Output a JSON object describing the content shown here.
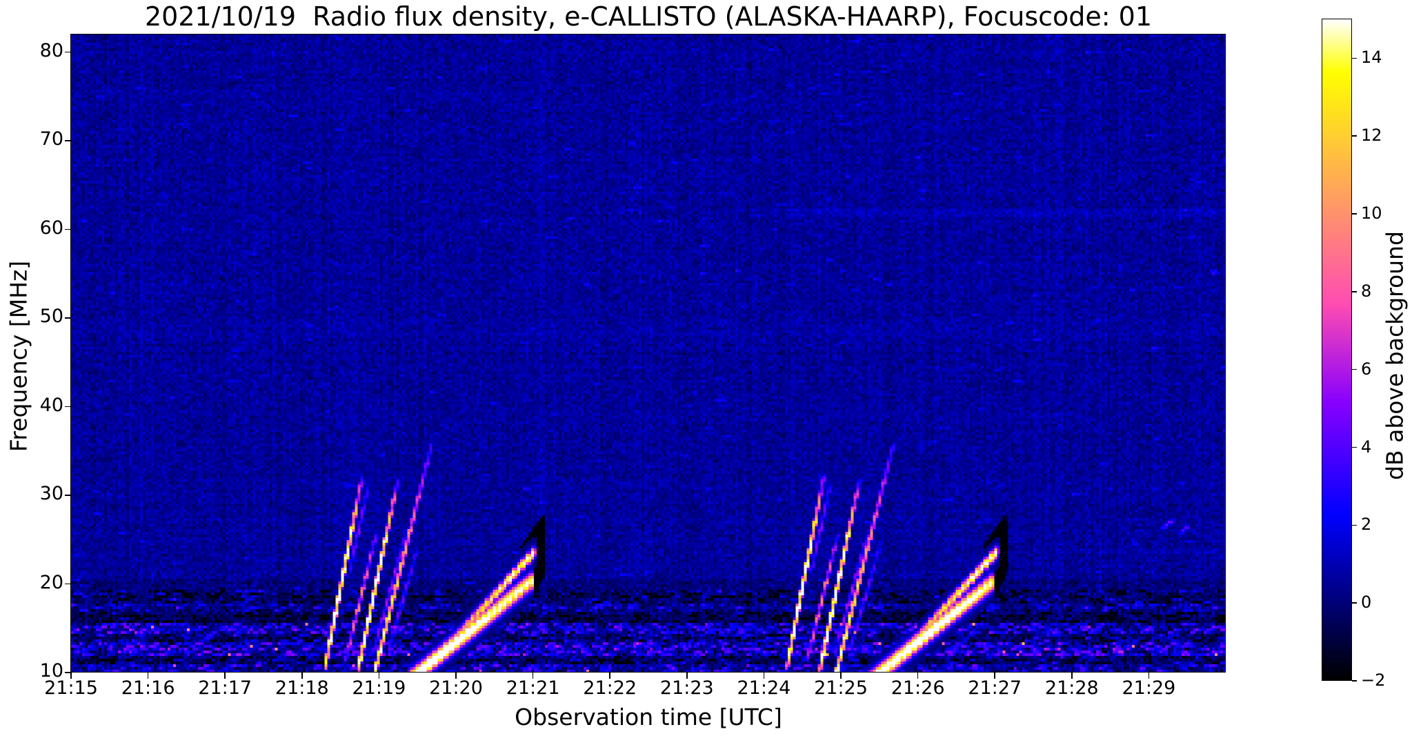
{
  "figure": {
    "background_color": "#ffffff"
  },
  "chart_data": {
    "type": "heatmap",
    "title": "2021/10/19  Radio flux density, e-CALLISTO (ALASKA-HAARP), Focuscode: 01",
    "xlabel": "Observation time [UTC]",
    "ylabel": "Frequency [MHz]",
    "x_ticks": [
      "21:15",
      "21:16",
      "21:17",
      "21:18",
      "21:19",
      "21:20",
      "21:21",
      "21:22",
      "21:23",
      "21:24",
      "21:25",
      "21:26",
      "21:27",
      "21:28",
      "21:29"
    ],
    "x_range_minutes": [
      0,
      15
    ],
    "x_start_label": "21:15",
    "y_ticks": [
      10,
      20,
      30,
      40,
      50,
      60,
      70,
      80
    ],
    "y_range_mhz": [
      10,
      82
    ],
    "grid": false,
    "colorbar": {
      "label": "dB above background",
      "colormap": "gnuplot2",
      "vmin": -2,
      "vmax": 15,
      "tick_values": [
        14,
        12,
        10,
        8,
        6,
        4,
        2,
        0,
        -2
      ],
      "tick_labels": [
        "14",
        "12",
        "10",
        "8",
        "6",
        "4",
        "2",
        "0",
        "−2"
      ]
    },
    "palette_reference": {
      "background_navy": "#10108c",
      "burst_core_white": "#ffffff",
      "burst_yellow": "#ffec13",
      "burst_pink": "#de38c8",
      "deep_black": "#000000"
    },
    "noise": {
      "seed": 42,
      "col_striation_sigma": 0.17,
      "regions": [
        {
          "f": [
            19.3,
            20.5
          ],
          "mean": 0.15,
          "sigma": 0.55,
          "speck": 0.01,
          "samp": 1.2
        },
        {
          "f": [
            17.8,
            19.3
          ],
          "mean": -0.15,
          "sigma": 0.75,
          "speck": 0.04,
          "samp": 1.7,
          "dark": 0.1,
          "damp": -1.4
        },
        {
          "f": [
            16.8,
            17.8
          ],
          "mean": 0.1,
          "sigma": 0.85,
          "speck": 0.1,
          "samp": 2.0
        },
        {
          "f": [
            15.6,
            16.8
          ],
          "mean": -0.45,
          "sigma": 0.75,
          "speck": 0.02,
          "samp": 1.5,
          "dark": 0.12,
          "damp": -1.5
        },
        {
          "f": [
            14.4,
            15.6
          ],
          "mean": 0.3,
          "sigma": 1.0,
          "speck": 0.22,
          "samp": 2.8,
          "mag": 0.006,
          "mamp": 6.5
        },
        {
          "f": [
            13.3,
            14.4
          ],
          "mean": -0.1,
          "sigma": 0.9,
          "speck": 0.1,
          "samp": 2.0,
          "dark": 0.08,
          "damp": -1.3
        },
        {
          "f": [
            12.0,
            13.3
          ],
          "mean": 0.45,
          "sigma": 1.1,
          "speck": 0.25,
          "samp": 3.0,
          "mag": 0.008,
          "mamp": 6.5
        },
        {
          "f": [
            11.0,
            12.0
          ],
          "mean": -0.2,
          "sigma": 0.85,
          "speck": 0.06,
          "samp": 1.8,
          "dark": 0.1,
          "damp": -1.3
        },
        {
          "f": [
            10.0,
            11.0
          ],
          "mean": 0.35,
          "sigma": 1.0,
          "speck": 0.15,
          "samp": 2.5,
          "mag": 0.004,
          "mamp": 6.0
        },
        {
          "f": [
            20.5,
            82.5
          ],
          "mean": 0.55,
          "sigma": 0.5,
          "speck": 0.004,
          "samp": 1.1
        }
      ],
      "patches": [
        {
          "f": [
            61.5,
            62.4
          ],
          "t": [
            8.8,
            15.0
          ],
          "add": 0.45
        },
        {
          "f": [
            23.3,
            23.9
          ],
          "t": [
            12.7,
            15.0
          ],
          "add": 0.32
        },
        {
          "f": [
            47.0,
            50.0
          ],
          "t": [
            0.0,
            15.0
          ],
          "add": 0.12
        },
        {
          "f": [
            75.2,
            75.9
          ],
          "t": [
            0.0,
            6.0
          ],
          "add": 0.18
        }
      ]
    },
    "burst_group_offsets_min": [
      0.0,
      6.0
    ],
    "thin_streaks": [
      {
        "p": [
          3.3,
          10.6,
          3.78,
          32.0
        ],
        "w": 0.55,
        "peak": [
          10.0,
          14.5,
          3.5
        ],
        "dash": 0.35
      },
      {
        "p": [
          3.57,
          11.5,
          3.96,
          25.5
        ],
        "w": 0.4,
        "peak": [
          4.0,
          7.0,
          3.0
        ],
        "dash": 0.45
      },
      {
        "p": [
          3.62,
          21.5,
          3.86,
          31.0
        ],
        "w": 0.35,
        "peak": [
          2.5,
          4.0,
          2.0
        ],
        "dash": 0.4
      },
      {
        "p": [
          3.73,
          10.3,
          4.24,
          31.5
        ],
        "w": 0.52,
        "peak": [
          11.0,
          14.5,
          3.5
        ],
        "dash": 0.35
      },
      {
        "p": [
          3.92,
          12.0,
          4.36,
          26.0
        ],
        "w": 0.38,
        "peak": [
          2.5,
          4.5,
          2.0
        ],
        "dash": 0.45
      },
      {
        "p": [
          3.95,
          10.2,
          4.68,
          35.6
        ],
        "w": 0.5,
        "peak": [
          13.0,
          9.0,
          2.8
        ],
        "dash": 0.3
      },
      {
        "p": [
          4.12,
          12.5,
          4.5,
          24.0
        ],
        "w": 0.35,
        "peak": [
          2.2,
          3.5,
          2.0
        ],
        "dash": 0.5
      }
    ],
    "broad_bands": [
      {
        "p": [
          4.4,
          9.2,
          5.98,
          20.3
        ],
        "w": 1.25,
        "peak": [
          15.5,
          15.0,
          13.0
        ],
        "dash": 0.25,
        "dp": 0.07
      },
      {
        "p": [
          4.85,
          12.6,
          6.03,
          23.7
        ],
        "w": 0.85,
        "peak": [
          5.0,
          9.5,
          11.0
        ],
        "dash": 0.8,
        "dp": 0.06
      }
    ],
    "shadow_bands": [
      {
        "p": [
          5.0,
          13.9,
          6.06,
          21.2
        ],
        "w": 1.8,
        "level": -1.6
      },
      {
        "p": [
          5.86,
          20.8,
          6.14,
          24.3
        ],
        "w": 2.6,
        "level": -1.9
      },
      {
        "p": [
          4.55,
          10.5,
          5.5,
          16.2
        ],
        "w": 1.2,
        "level": -0.9
      }
    ],
    "extra_streaks": [
      {
        "p": [
          14.18,
          26.3,
          14.32,
          27.2
        ],
        "w": 0.4,
        "peak": [
          2.4,
          3.2,
          2.4
        ],
        "dash": 0.6
      },
      {
        "p": [
          14.42,
          25.8,
          14.52,
          26.6
        ],
        "w": 0.4,
        "peak": [
          2.2,
          3.0,
          2.2
        ],
        "dash": 0.6
      }
    ]
  }
}
